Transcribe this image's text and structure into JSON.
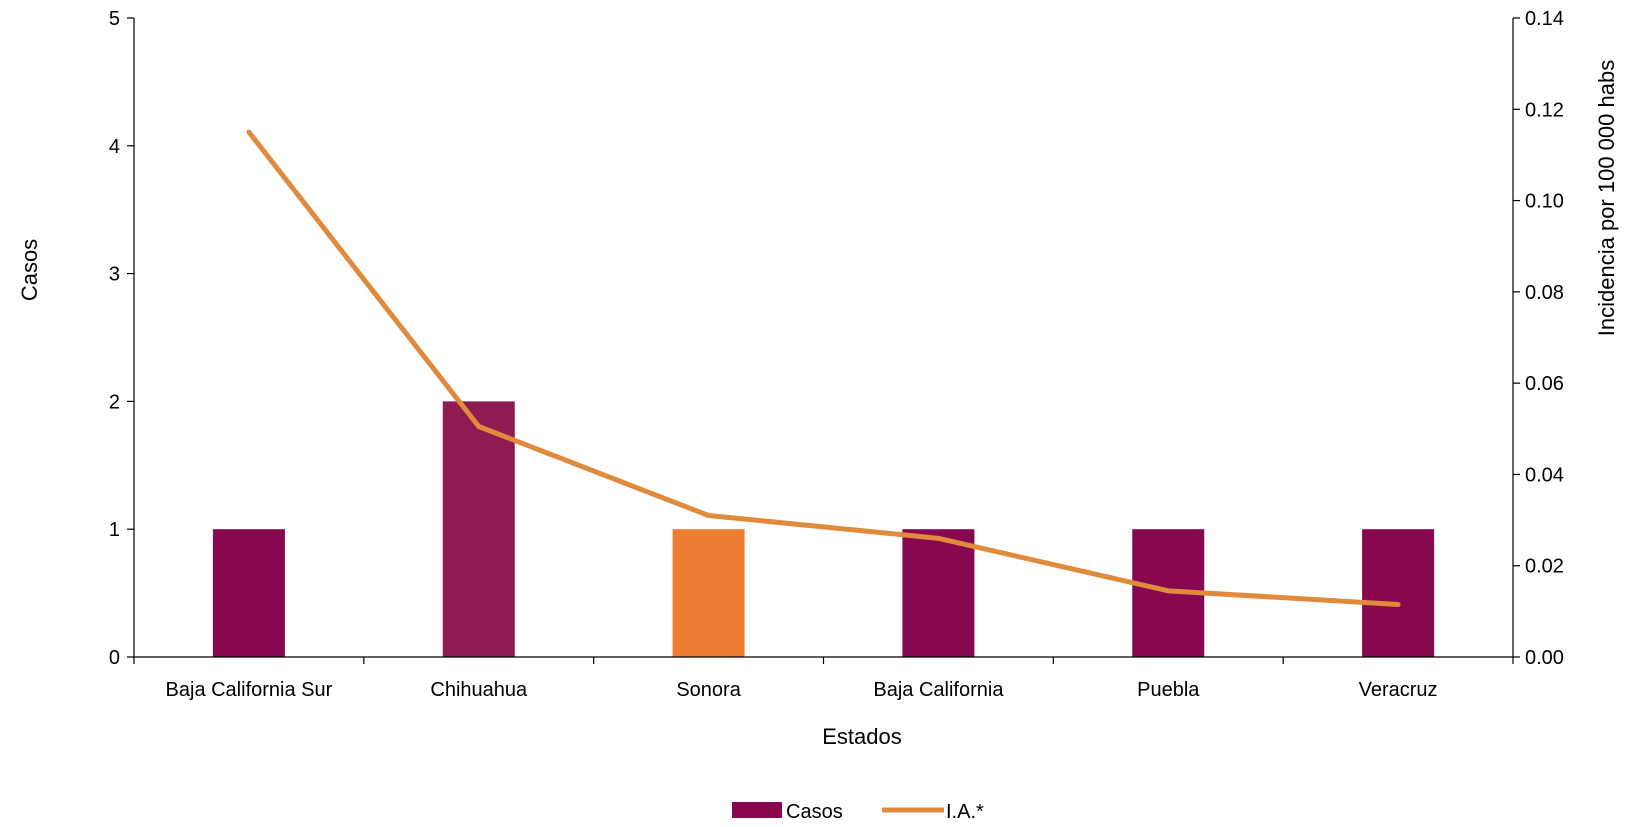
{
  "chart_data": {
    "type": "bar",
    "categories": [
      "Baja California Sur",
      "Chihuahua",
      "Sonora",
      "Baja California",
      "Puebla",
      "Veracruz"
    ],
    "series": [
      {
        "name": "Casos",
        "kind": "bar",
        "axis": "left",
        "values": [
          1,
          2,
          1,
          1,
          1,
          1
        ],
        "colors": [
          "#87084e",
          "#8e1b52",
          "#ed7d31",
          "#87084e",
          "#87084e",
          "#87084e"
        ]
      },
      {
        "name": "I.A.*",
        "kind": "line",
        "axis": "right",
        "values": [
          0.115,
          0.0505,
          0.031,
          0.026,
          0.0145,
          0.0115
        ],
        "color": "#e08a3c"
      }
    ],
    "xlabel": "Estados",
    "ylabel": "Casos",
    "y2label": "Incidencia por 100 000 habs",
    "ylim": [
      0,
      5
    ],
    "y2lim": [
      0,
      0.14
    ],
    "yticks": [
      "0",
      "1",
      "2",
      "3",
      "4",
      "5"
    ],
    "y2ticks": [
      "0.00",
      "0.02",
      "0.04",
      "0.06",
      "0.08",
      "0.10",
      "0.12",
      "0.14"
    ],
    "legend_position": "bottom",
    "grid": false
  }
}
